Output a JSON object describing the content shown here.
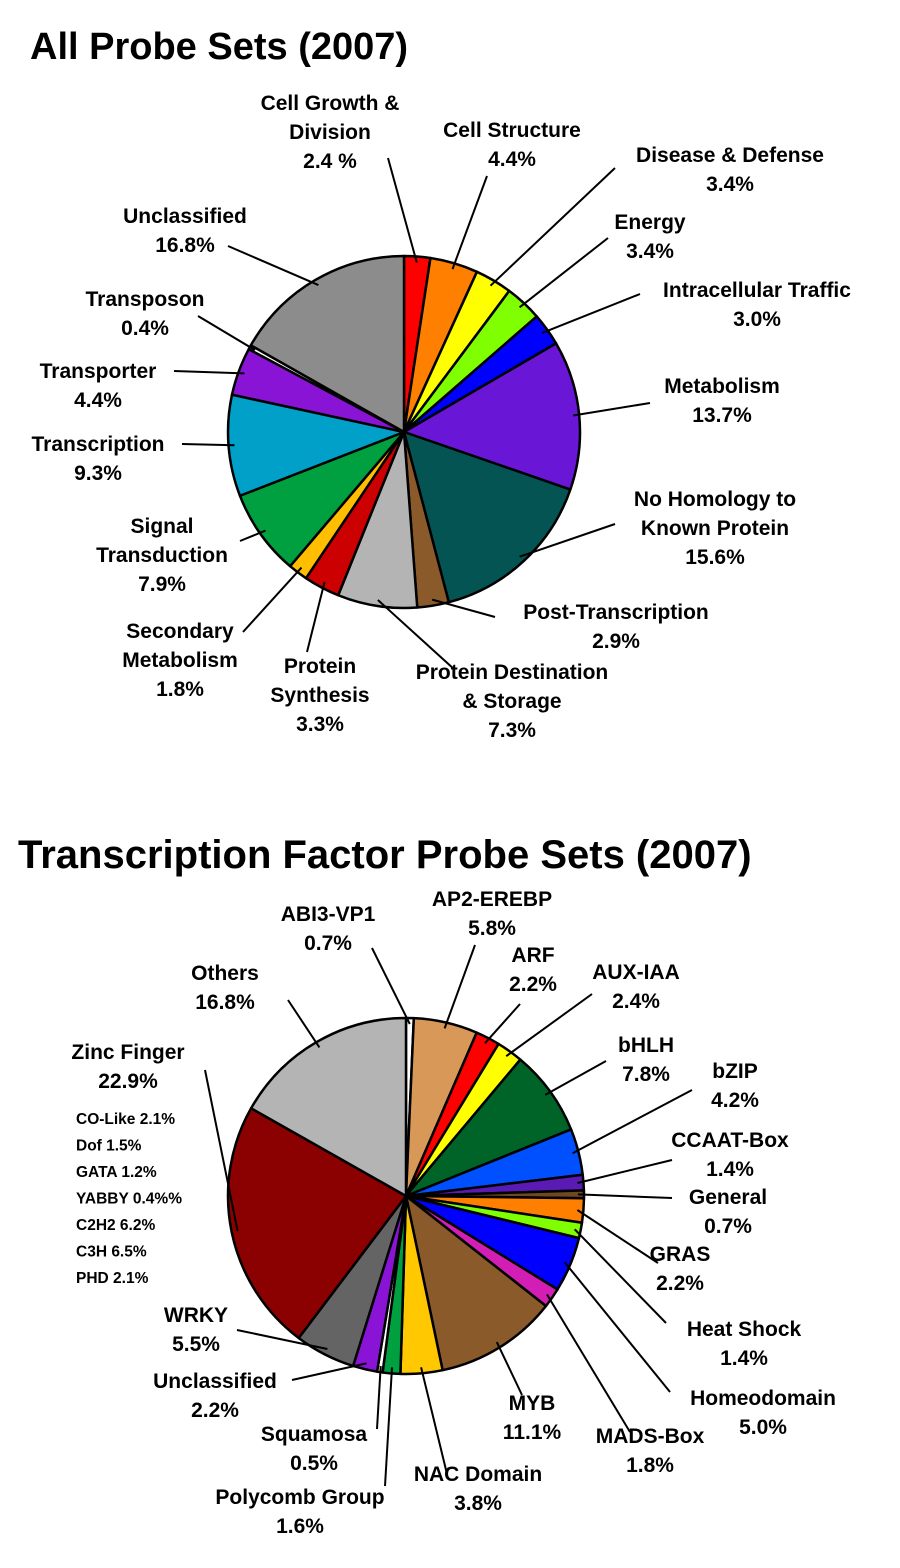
{
  "chart_data": [
    {
      "type": "pie",
      "title": "All Probe Sets (2007)",
      "unit": "%",
      "slices": [
        {
          "name": "Cell Growth & Division",
          "value": 2.4,
          "label": "2.4 %",
          "color": "#ff0000"
        },
        {
          "name": "Cell Structure",
          "value": 4.4,
          "label": "4.4%",
          "color": "#ff8000"
        },
        {
          "name": "Disease & Defense",
          "value": 3.4,
          "label": "3.4%",
          "color": "#ffff00"
        },
        {
          "name": "Energy",
          "value": 3.4,
          "label": "3.4%",
          "color": "#80ff00"
        },
        {
          "name": "Intracellular Traffic",
          "value": 3.0,
          "label": "3.0%",
          "color": "#0000ff"
        },
        {
          "name": "Metabolism",
          "value": 13.7,
          "label": "13.7%",
          "color": "#6a16d6"
        },
        {
          "name": "No Homology to Known Protein",
          "value": 15.6,
          "label": "15.6%",
          "color": "#045454"
        },
        {
          "name": "Post-Transcription",
          "value": 2.9,
          "label": "2.9%",
          "color": "#8b5a2b"
        },
        {
          "name": "Protein Destination & Storage",
          "value": 7.3,
          "label": "7.3%",
          "color": "#b4b4b4"
        },
        {
          "name": "Protein Synthesis",
          "value": 3.3,
          "label": "3.3%",
          "color": "#cc0000"
        },
        {
          "name": "Secondary Metabolism",
          "value": 1.8,
          "label": "1.8%",
          "color": "#ffbf00"
        },
        {
          "name": "Signal Transduction",
          "value": 7.9,
          "label": "7.9%",
          "color": "#00a040"
        },
        {
          "name": "Transcription",
          "value": 9.3,
          "label": "9.3%",
          "color": "#00a0c8"
        },
        {
          "name": "Transporter",
          "value": 4.4,
          "label": "4.4%",
          "color": "#8a14d6"
        },
        {
          "name": "Transposon",
          "value": 0.4,
          "label": "0.4%",
          "color": "#ffffff"
        },
        {
          "name": "Unclassified",
          "value": 16.8,
          "label": "16.8%",
          "color": "#8c8c8c"
        }
      ]
    },
    {
      "type": "pie",
      "title": "Transcription Factor Probe Sets (2007)",
      "unit": "%",
      "slices": [
        {
          "name": "ABI3-VP1",
          "value": 0.7,
          "label": "0.7%",
          "color": "#ffffff"
        },
        {
          "name": "AP2-EREBP",
          "value": 5.8,
          "label": "5.8%",
          "color": "#d89858"
        },
        {
          "name": "ARF",
          "value": 2.2,
          "label": "2.2%",
          "color": "#ff0000"
        },
        {
          "name": "AUX-IAA",
          "value": 2.4,
          "label": "2.4%",
          "color": "#ffff00"
        },
        {
          "name": "bHLH",
          "value": 7.8,
          "label": "7.8%",
          "color": "#006428"
        },
        {
          "name": "bZIP",
          "value": 4.2,
          "label": "4.2%",
          "color": "#0050ff"
        },
        {
          "name": "CCAAT-Box",
          "value": 1.4,
          "label": "1.4%",
          "color": "#5a1ab4"
        },
        {
          "name": "General",
          "value": 0.7,
          "label": "0.7%",
          "color": "#6e4820"
        },
        {
          "name": "GRAS",
          "value": 2.2,
          "label": "2.2%",
          "color": "#ff8000"
        },
        {
          "name": "Heat Shock",
          "value": 1.4,
          "label": "1.4%",
          "color": "#80ff00"
        },
        {
          "name": "Homeodomain",
          "value": 5.0,
          "label": "5.0%",
          "color": "#0000ff"
        },
        {
          "name": "MADS-Box",
          "value": 1.8,
          "label": "1.8%",
          "color": "#d21eb4"
        },
        {
          "name": "MYB",
          "value": 11.1,
          "label": "11.1%",
          "color": "#8b5a2b"
        },
        {
          "name": "NAC Domain",
          "value": 3.8,
          "label": "3.8%",
          "color": "#ffc800"
        },
        {
          "name": "Polycomb Group",
          "value": 1.6,
          "label": "1.6%",
          "color": "#00a040"
        },
        {
          "name": "Squamosa",
          "value": 0.5,
          "label": "0.5%",
          "color": "#ffffff"
        },
        {
          "name": "Unclassified",
          "value": 2.2,
          "label": "2.2%",
          "color": "#8a14d6"
        },
        {
          "name": "WRKY",
          "value": 5.5,
          "label": "5.5%",
          "color": "#646464"
        },
        {
          "name": "Zinc Finger",
          "value": 22.9,
          "label": "22.9%",
          "color": "#8b0000"
        },
        {
          "name": "Others",
          "value": 16.8,
          "label": "16.8%",
          "color": "#b4b4b4"
        }
      ],
      "annotations": {
        "zinc_finger_breakdown": [
          "CO-Like 2.1%",
          "Dof 1.5%",
          "GATA 1.2%",
          "YABBY 0.4%%",
          "C2H2 6.2%",
          "C3H 6.5%",
          "PHD 2.1%"
        ]
      }
    }
  ]
}
